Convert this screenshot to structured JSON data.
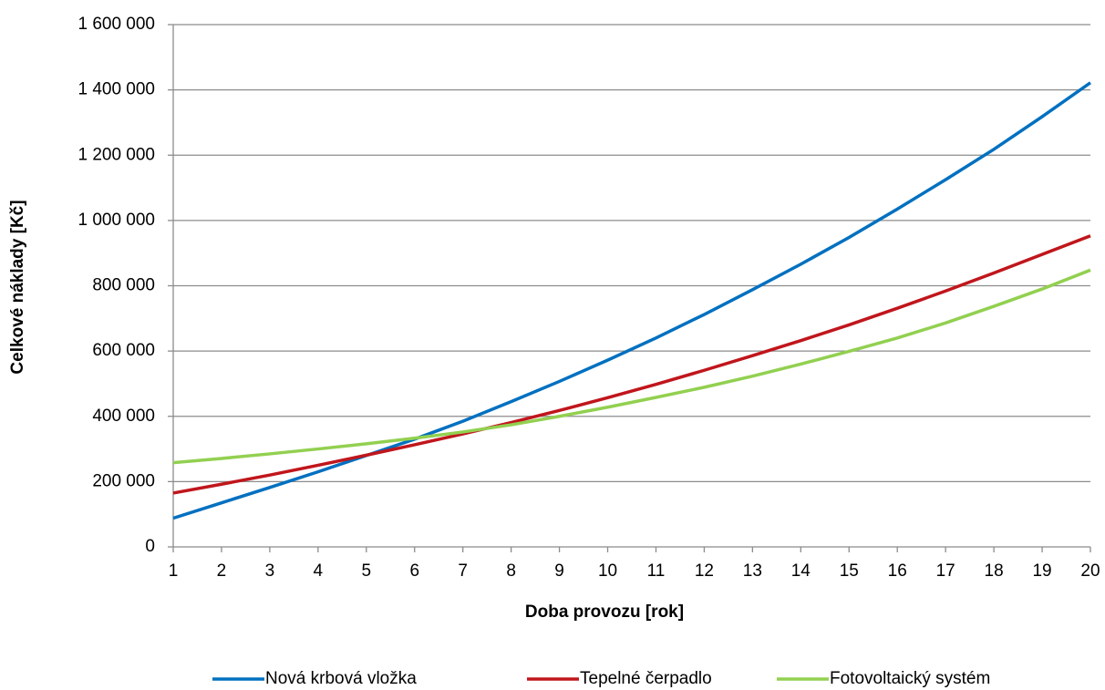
{
  "chart_data": {
    "type": "line",
    "xlabel": "Doba provozu [rok]",
    "ylabel": "Celkové  náklady [Kč]",
    "x": [
      1,
      2,
      3,
      4,
      5,
      6,
      7,
      8,
      9,
      10,
      11,
      12,
      13,
      14,
      15,
      16,
      17,
      18,
      19,
      20
    ],
    "xlim": [
      1,
      20
    ],
    "xticks": [
      1,
      2,
      3,
      4,
      5,
      6,
      7,
      8,
      9,
      10,
      11,
      12,
      13,
      14,
      15,
      16,
      17,
      18,
      19,
      20
    ],
    "ylim": [
      0,
      1600000
    ],
    "yticks": [
      0,
      {
        "value": 200000,
        "label": "200 000"
      },
      {
        "value": 400000,
        "label": "400 000"
      },
      {
        "value": 600000,
        "label": "600 000"
      },
      {
        "value": 800000,
        "label": "800 000"
      },
      {
        "value": 1000000,
        "label": "1 000 000"
      },
      {
        "value": 1200000,
        "label": "1 200 000"
      },
      {
        "value": 1400000,
        "label": "1 400 000"
      },
      {
        "value": 1600000,
        "label": "1 600 000"
      }
    ],
    "grid": true,
    "legend": "bottom",
    "series": [
      {
        "name": "Nová krbová vložka",
        "color": "#0070c0",
        "values": [
          88000,
          135000,
          182000,
          230000,
          280000,
          330000,
          385000,
          445000,
          507000,
          572000,
          640000,
          712000,
          788000,
          866000,
          948000,
          1035000,
          1125000,
          1218000,
          1318000,
          1422000
        ]
      },
      {
        "name": "Tepelné čerpadlo",
        "color": "#c0161c",
        "values": [
          165000,
          192000,
          220000,
          250000,
          281000,
          313000,
          346000,
          381000,
          418000,
          457000,
          498000,
          541000,
          586000,
          632000,
          680000,
          731000,
          784000,
          839000,
          896000,
          953000
        ]
      },
      {
        "name": "Fotovoltaický systém",
        "color": "#92d050",
        "values": [
          258000,
          271000,
          285000,
          300000,
          316000,
          333000,
          352000,
          374000,
          400000,
          428000,
          458000,
          489000,
          523000,
          560000,
          599000,
          640000,
          686000,
          737000,
          790000,
          848000
        ]
      }
    ]
  }
}
